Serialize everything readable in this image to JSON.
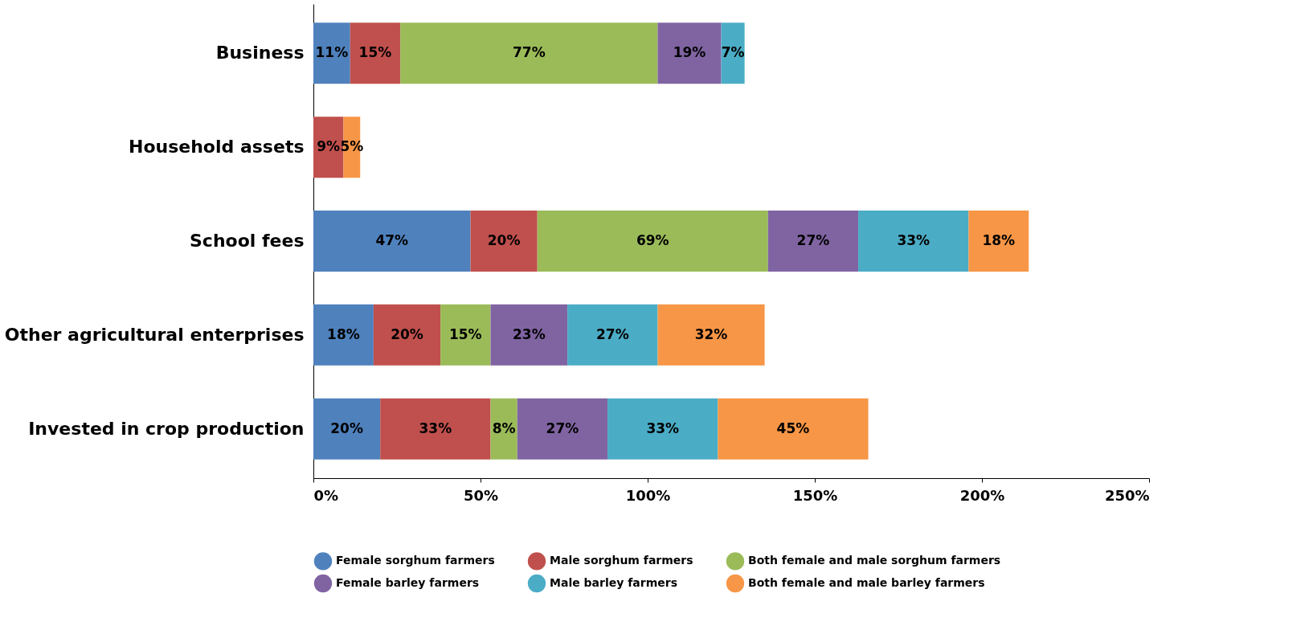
{
  "chart_data": {
    "type": "bar",
    "orientation": "horizontal",
    "stacked": true,
    "categories": [
      "Business",
      "Household assets",
      "School fees",
      "Other agricultural enterprises",
      "Invested in crop production"
    ],
    "series": [
      {
        "name": "Female sorghum farmers",
        "color": "#4f81bd",
        "values": [
          11,
          null,
          47,
          18,
          20
        ],
        "value_labels": [
          "11%",
          null,
          "47%",
          "18%",
          "20%"
        ]
      },
      {
        "name": "Male sorghum farmers",
        "color": "#c0504d",
        "values": [
          15,
          9,
          20,
          20,
          33
        ],
        "value_labels": [
          "15%",
          "9%",
          "20%",
          "20%",
          "33%"
        ]
      },
      {
        "name": "Both female and male sorghum farmers",
        "color": "#9bbb59",
        "values": [
          77,
          null,
          69,
          15,
          8
        ],
        "value_labels": [
          "77%",
          null,
          "69%",
          "15%",
          "8%"
        ]
      },
      {
        "name": "Female barley farmers",
        "color": "#8064a2",
        "values": [
          19,
          null,
          27,
          23,
          27
        ],
        "value_labels": [
          "19%",
          null,
          "27%",
          "23%",
          "27%"
        ]
      },
      {
        "name": "Male barley farmers",
        "color": "#4bacc6",
        "values": [
          7,
          null,
          33,
          27,
          33
        ],
        "value_labels": [
          "7%",
          null,
          "33%",
          "27%",
          "33%"
        ]
      },
      {
        "name": "Both female and male barley farmers",
        "color": "#f79646",
        "values": [
          null,
          5,
          18,
          32,
          45
        ],
        "value_labels": [
          null,
          "5%",
          "18%",
          "32%",
          "45%"
        ]
      }
    ],
    "xlim": [
      0,
      250
    ],
    "xticks": [
      {
        "value": 0,
        "label": "0%"
      },
      {
        "value": 50,
        "label": "50%"
      },
      {
        "value": 100,
        "label": "100%"
      },
      {
        "value": 150,
        "label": "150%"
      },
      {
        "value": 200,
        "label": "200%"
      },
      {
        "value": 250,
        "label": "250%"
      }
    ],
    "grid": false,
    "legend": "bottom",
    "marker": "circle"
  }
}
